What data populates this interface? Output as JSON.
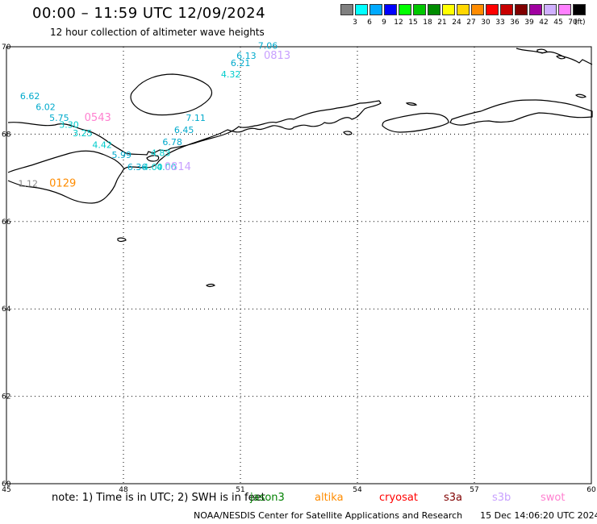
{
  "header": {
    "title": "00:00 – 11:59 UTC 12/09/2024",
    "subtitle": "12 hour collection of altimeter wave heights"
  },
  "legend": {
    "unit": "(ft)",
    "bins": [
      {
        "label": "3",
        "color": "#808080"
      },
      {
        "label": "6",
        "color": "#00ffff"
      },
      {
        "label": "9",
        "color": "#00aaff"
      },
      {
        "label": "12",
        "color": "#0000ff"
      },
      {
        "label": "15",
        "color": "#00ff00"
      },
      {
        "label": "18",
        "color": "#00c800"
      },
      {
        "label": "21",
        "color": "#008c00"
      },
      {
        "label": "24",
        "color": "#ffff00"
      },
      {
        "label": "27",
        "color": "#ffd700"
      },
      {
        "label": "30",
        "color": "#ff8c00"
      },
      {
        "label": "33",
        "color": "#ff0000"
      },
      {
        "label": "36",
        "color": "#c80000"
      },
      {
        "label": "39",
        "color": "#800000"
      },
      {
        "label": "42",
        "color": "#a000a0"
      },
      {
        "label": "45",
        "color": "#d0b0ff"
      },
      {
        "label": "70",
        "color": "#ff80ff"
      },
      {
        "label": "",
        "color": "#000000"
      }
    ]
  },
  "map": {
    "lon_ticks": [
      "45",
      "48",
      "51",
      "54",
      "57",
      "60"
    ],
    "lat_ticks": [
      "70",
      "68",
      "66",
      "64",
      "62",
      "60"
    ],
    "lon_range": [
      45,
      60
    ],
    "lat_range": [
      60,
      70
    ],
    "swh_labels": [
      {
        "text": "7.06",
        "lon": 51.45,
        "lat": 69.95,
        "color": "#00aacc"
      },
      {
        "text": "6.13",
        "lon": 50.9,
        "lat": 69.72,
        "color": "#00aacc"
      },
      {
        "text": "6.21",
        "lon": 50.75,
        "lat": 69.56,
        "color": "#00aacc"
      },
      {
        "text": "4.32",
        "lon": 50.5,
        "lat": 69.3,
        "color": "#00cccc"
      },
      {
        "text": "6.62",
        "lon": 45.35,
        "lat": 68.8,
        "color": "#00aacc"
      },
      {
        "text": "6.02",
        "lon": 45.75,
        "lat": 68.55,
        "color": "#00aacc"
      },
      {
        "text": "5.75",
        "lon": 46.1,
        "lat": 68.3,
        "color": "#00aacc"
      },
      {
        "text": "3.30",
        "lon": 46.35,
        "lat": 68.15,
        "color": "#00cccc"
      },
      {
        "text": "3.25",
        "lon": 46.7,
        "lat": 67.95,
        "color": "#00cccc"
      },
      {
        "text": "4.42",
        "lon": 47.2,
        "lat": 67.68,
        "color": "#00cccc"
      },
      {
        "text": "5.99",
        "lon": 47.7,
        "lat": 67.45,
        "color": "#00aacc"
      },
      {
        "text": "6.36",
        "lon": 48.1,
        "lat": 67.18,
        "color": "#00aacc"
      },
      {
        "text": "4.83",
        "lon": 48.7,
        "lat": 67.5,
        "color": "#00cccc"
      },
      {
        "text": "6.78",
        "lon": 49.0,
        "lat": 67.75,
        "color": "#00aacc"
      },
      {
        "text": "6.45",
        "lon": 49.3,
        "lat": 68.03,
        "color": "#00aacc"
      },
      {
        "text": "7.11",
        "lon": 49.6,
        "lat": 68.3,
        "color": "#00aacc"
      },
      {
        "text": "1.12",
        "lon": 45.3,
        "lat": 66.8,
        "color": "#888888"
      },
      {
        "text": "4.00",
        "lon": 48.5,
        "lat": 67.18,
        "color": "#00cccc"
      },
      {
        "text": "4.00",
        "lon": 48.85,
        "lat": 67.18,
        "color": "#00cccc"
      }
    ],
    "pass_labels": [
      {
        "text": "0813",
        "lon": 51.6,
        "lat": 69.72,
        "color": "#c8a0ff"
      },
      {
        "text": "0543",
        "lon": 47.0,
        "lat": 68.3,
        "color": "#ff80d0"
      },
      {
        "text": "0129",
        "lon": 46.1,
        "lat": 66.8,
        "color": "#ff8c00"
      },
      {
        "text": "0814",
        "lon": 49.05,
        "lat": 67.18,
        "color": "#c8a0ff"
      }
    ]
  },
  "footer": {
    "note": "note:  1) Time is in UTC;  2) SWH is in feet",
    "satellites": [
      {
        "name": "jason3",
        "color": "#008000"
      },
      {
        "name": "altika",
        "color": "#ff8c00"
      },
      {
        "name": "cryosat",
        "color": "#ff0000"
      },
      {
        "name": "s3a",
        "color": "#800000"
      },
      {
        "name": "s3b",
        "color": "#c8a0ff"
      },
      {
        "name": "swot",
        "color": "#ff80d0"
      }
    ],
    "credit": "NOAA/NESDIS Center for Satellite Applications and Research",
    "generated": "15 Dec 14:06:20 UTC 2024"
  }
}
